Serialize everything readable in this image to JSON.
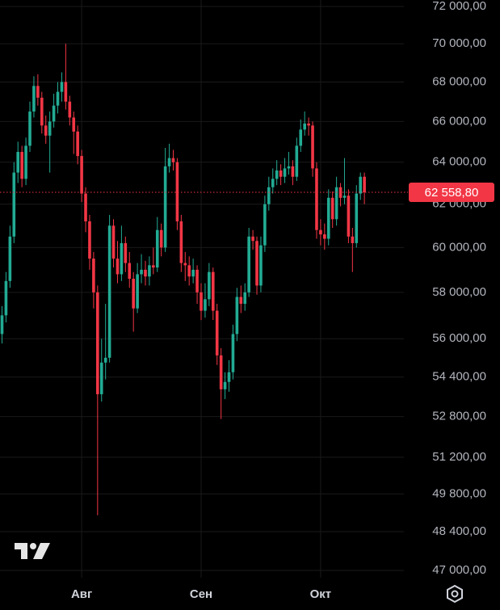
{
  "chart_data": {
    "type": "candlestick",
    "categories": [
      null,
      null,
      null,
      null,
      null,
      null,
      null,
      null,
      null,
      null,
      null,
      null,
      null,
      null,
      null,
      null,
      null,
      null,
      null,
      null,
      "Авг",
      null,
      null,
      null,
      null,
      null,
      null,
      null,
      null,
      null,
      null,
      null,
      null,
      null,
      null,
      null,
      null,
      null,
      null,
      null,
      null,
      null,
      null,
      null,
      null,
      null,
      null,
      null,
      null,
      null,
      "Сен",
      null,
      null,
      null,
      null,
      null,
      null,
      null,
      null,
      null,
      null,
      null,
      null,
      null,
      null,
      null,
      null,
      null,
      null,
      null,
      null,
      null,
      null,
      null,
      null,
      null,
      null,
      null,
      null,
      null,
      "Окт",
      null,
      null,
      null,
      null,
      null,
      null,
      null,
      null,
      null,
      null,
      null
    ],
    "open": [
      56200,
      57000,
      58500,
      60500,
      63500,
      64500,
      63200,
      64800,
      66500,
      67800,
      67200,
      65800,
      65300,
      66000,
      66800,
      67500,
      68000,
      67000,
      66200,
      65500,
      64300,
      62500,
      61200,
      59500,
      58000,
      53700,
      55000,
      55200,
      61000,
      59500,
      58800,
      60200,
      59300,
      58600,
      57300,
      58800,
      59000,
      58700,
      59200,
      59100,
      60800,
      60000,
      63800,
      64200,
      64000,
      61200,
      59300,
      59200,
      58700,
      59000,
      58000,
      57200,
      57700,
      58900,
      57200,
      55300,
      53900,
      54200,
      54600,
      56200,
      57800,
      57500,
      58000,
      60500,
      60300,
      58300,
      60100,
      62000,
      62800,
      63200,
      63600,
      63300,
      63700,
      63800,
      63300,
      64800,
      65600,
      65900,
      65800,
      63700,
      60800,
      60600,
      60400,
      62300,
      61300,
      62800,
      62300,
      62400,
      60500,
      60200,
      62500,
      63300
    ],
    "high": [
      57400,
      58900,
      61000,
      64000,
      65000,
      64800,
      65200,
      67000,
      68300,
      68400,
      67500,
      66300,
      66500,
      67400,
      68000,
      68500,
      70000,
      67300,
      66500,
      65800,
      64600,
      62800,
      61500,
      59800,
      58300,
      56000,
      57500,
      61500,
      61300,
      60300,
      61000,
      60500,
      59800,
      58900,
      59300,
      59700,
      59400,
      59600,
      60000,
      61400,
      61100,
      64700,
      64900,
      64600,
      64200,
      61500,
      59800,
      59600,
      59500,
      59200,
      58400,
      58400,
      59300,
      59100,
      57500,
      55600,
      54600,
      55100,
      56600,
      58200,
      58300,
      58400,
      60900,
      60800,
      60500,
      60500,
      62400,
      63300,
      63700,
      64100,
      63900,
      64200,
      64500,
      64100,
      65200,
      66100,
      66500,
      66200,
      66000,
      64000,
      61300,
      61100,
      62700,
      62600,
      63300,
      63000,
      64200,
      62700,
      60900,
      62900,
      63500,
      63500
    ],
    "low": [
      55800,
      56700,
      58200,
      60200,
      63000,
      62800,
      62900,
      64500,
      66200,
      66800,
      65400,
      64900,
      63500,
      65700,
      66400,
      67000,
      66600,
      65800,
      64400,
      63900,
      62100,
      60700,
      59000,
      57300,
      49000,
      53400,
      54300,
      55000,
      59100,
      58400,
      58500,
      58900,
      58200,
      56300,
      57100,
      58400,
      58300,
      58300,
      58800,
      58900,
      59600,
      59800,
      63500,
      63600,
      60800,
      58900,
      58500,
      58300,
      58400,
      57500,
      56800,
      56900,
      57400,
      56800,
      54900,
      52700,
      53500,
      53800,
      54300,
      55900,
      57100,
      57200,
      57800,
      59900,
      57900,
      58000,
      59800,
      61700,
      62500,
      62900,
      62900,
      63000,
      63400,
      62900,
      63100,
      64500,
      65300,
      65300,
      63300,
      60400,
      60100,
      59900,
      60100,
      60900,
      61000,
      61900,
      62000,
      60200,
      58900,
      60000,
      62200,
      62000
    ],
    "close": [
      57000,
      58500,
      60500,
      63500,
      64500,
      63200,
      64800,
      66500,
      67800,
      67200,
      65800,
      65300,
      66000,
      66800,
      67500,
      68000,
      67000,
      66200,
      65500,
      64300,
      62500,
      61200,
      59500,
      58000,
      53700,
      55000,
      55200,
      61000,
      59500,
      58800,
      60200,
      59300,
      58600,
      57300,
      58800,
      59000,
      58700,
      59200,
      59100,
      60800,
      60000,
      63800,
      64200,
      64000,
      61200,
      59300,
      59200,
      58700,
      59000,
      58000,
      57200,
      57700,
      58900,
      57200,
      55300,
      53900,
      54200,
      54600,
      56200,
      57800,
      57500,
      58000,
      60500,
      60300,
      58300,
      60100,
      62000,
      62800,
      63200,
      63600,
      63300,
      63700,
      63800,
      63300,
      64800,
      65600,
      65900,
      65800,
      63700,
      60800,
      60600,
      60400,
      62300,
      61300,
      62800,
      62300,
      62400,
      60500,
      60200,
      62500,
      63300,
      62558.8
    ],
    "up_color": "#22ab94",
    "down_color": "#f23645",
    "ylim": [
      47000,
      72000
    ],
    "log_scale": true,
    "yticks": [
      {
        "value": 72000,
        "label": "72 000,00"
      },
      {
        "value": 70000,
        "label": "70 000,00"
      },
      {
        "value": 68000,
        "label": "68 000,00"
      },
      {
        "value": 66000,
        "label": "66 000,00"
      },
      {
        "value": 64000,
        "label": "64 000,00"
      },
      {
        "value": 62000,
        "label": "62 000,00"
      },
      {
        "value": 60000,
        "label": "60 000,00"
      },
      {
        "value": 58000,
        "label": "58 000,00"
      },
      {
        "value": 56000,
        "label": "56 000,00"
      },
      {
        "value": 54400,
        "label": "54 400,00"
      },
      {
        "value": 52800,
        "label": "52 800,00"
      },
      {
        "value": 51200,
        "label": "51 200,00"
      },
      {
        "value": 49800,
        "label": "49 800,00"
      },
      {
        "value": 48400,
        "label": "48 400,00"
      },
      {
        "value": 47000,
        "label": "47 000,00"
      }
    ],
    "grid": true,
    "last_price": {
      "value": 62558.8,
      "label": "62 558,80"
    }
  }
}
